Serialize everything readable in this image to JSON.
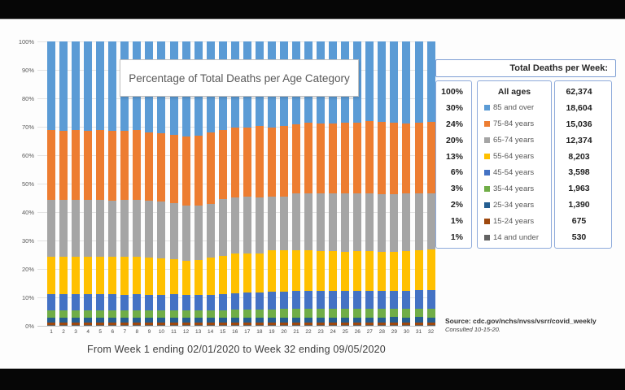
{
  "title_box": {
    "text": "Percentage of Total Deaths per Age Category"
  },
  "legend_panel": {
    "header": "Total Deaths per Week:",
    "rows": [
      {
        "percent": "100%",
        "label": "All ages",
        "swatch": null,
        "value": "62,374"
      },
      {
        "percent": "30%",
        "label": "85 and over",
        "swatch": "#5B9BD5",
        "value": "18,604"
      },
      {
        "percent": "24%",
        "label": "75-84 years",
        "swatch": "#ED7D31",
        "value": "15,036"
      },
      {
        "percent": "20%",
        "label": "65-74 years",
        "swatch": "#A5A5A5",
        "value": "12,374"
      },
      {
        "percent": "13%",
        "label": "55-64 years",
        "swatch": "#FFC000",
        "value": "8,203"
      },
      {
        "percent": "6%",
        "label": "45-54 years",
        "swatch": "#4472C4",
        "value": "3,598"
      },
      {
        "percent": "3%",
        "label": "35-44 years",
        "swatch": "#70AD47",
        "value": "1,963"
      },
      {
        "percent": "2%",
        "label": "25-34 years",
        "swatch": "#255E91",
        "value": "1,390"
      },
      {
        "percent": "1%",
        "label": "15-24 years",
        "swatch": "#9E480E",
        "value": "675"
      },
      {
        "percent": "1%",
        "label": "14 and under",
        "swatch": "#636363",
        "value": "530"
      }
    ]
  },
  "source": {
    "line1": "Source: cdc.gov/nchs/nvss/vsrr/covid_weekly",
    "line2": "Consulted 10-15-20."
  },
  "chart_data": {
    "type": "bar",
    "stacked": true,
    "title": "Percentage of Total Deaths per Age Category",
    "xlabel": "From Week 1 ending 02/01/2020 to Week 32 ending 09/05/2020",
    "ylabel": "",
    "ylim": [
      0,
      100
    ],
    "grid": true,
    "legend_position": "right",
    "y_ticks": [
      "100%",
      "90%",
      "80%",
      "70%",
      "60%",
      "50%",
      "40%",
      "30%",
      "20%",
      "10%",
      "0%"
    ],
    "x": [
      1,
      2,
      3,
      4,
      5,
      6,
      7,
      8,
      9,
      10,
      11,
      12,
      13,
      14,
      15,
      16,
      17,
      18,
      19,
      20,
      21,
      22,
      23,
      24,
      25,
      26,
      27,
      28,
      29,
      30,
      31,
      32
    ],
    "series": [
      {
        "name": "85 and over",
        "color": "#5B9BD5",
        "values": [
          31.2,
          31.4,
          31.1,
          31.5,
          31.2,
          31.5,
          31.3,
          31.1,
          32.0,
          32.4,
          32.8,
          33.4,
          33.0,
          32.1,
          31.1,
          30.2,
          30.3,
          29.7,
          30.2,
          29.8,
          29.2,
          28.7,
          28.9,
          28.9,
          28.6,
          28.5,
          27.9,
          28.2,
          28.6,
          28.8,
          28.6,
          28.3
        ]
      },
      {
        "name": "75-84 years",
        "color": "#ED7D31",
        "values": [
          24.4,
          24.3,
          24.6,
          24.2,
          24.5,
          24.4,
          24.5,
          24.7,
          24.1,
          24.0,
          24.1,
          24.3,
          24.8,
          25.0,
          24.3,
          24.6,
          24.4,
          25.1,
          24.3,
          24.8,
          24.2,
          24.7,
          24.6,
          24.5,
          24.9,
          25.0,
          25.5,
          25.4,
          25.0,
          24.7,
          24.8,
          25.0
        ]
      },
      {
        "name": "65-74 years",
        "color": "#A5A5A5",
        "values": [
          20.0,
          20.0,
          19.9,
          20.1,
          20.1,
          19.8,
          19.9,
          19.9,
          19.9,
          19.8,
          19.6,
          19.3,
          19.0,
          18.9,
          19.9,
          19.8,
          19.9,
          19.7,
          19.0,
          18.9,
          20.0,
          20.1,
          20.2,
          20.2,
          20.4,
          20.3,
          20.3,
          20.4,
          20.3,
          20.1,
          20.0,
          19.9
        ]
      },
      {
        "name": "55-64 years",
        "color": "#FFC000",
        "values": [
          13.3,
          13.2,
          13.3,
          13.1,
          13.1,
          13.2,
          13.3,
          13.2,
          13.0,
          12.8,
          12.5,
          12.1,
          12.3,
          13.0,
          13.5,
          13.9,
          13.8,
          13.9,
          14.5,
          14.4,
          14.2,
          14.3,
          14.0,
          14.1,
          13.8,
          13.9,
          14.0,
          13.7,
          13.8,
          14.0,
          14.1,
          14.2
        ]
      },
      {
        "name": "45-54 years",
        "color": "#4472C4",
        "values": [
          5.6,
          5.6,
          5.6,
          5.6,
          5.6,
          5.6,
          5.5,
          5.6,
          5.5,
          5.5,
          5.5,
          5.4,
          5.4,
          5.5,
          5.7,
          5.9,
          6.0,
          6.0,
          6.2,
          6.2,
          6.4,
          6.2,
          6.3,
          6.3,
          6.3,
          6.3,
          6.3,
          6.3,
          6.3,
          6.4,
          6.5,
          6.6
        ]
      },
      {
        "name": "35-44 years",
        "color": "#70AD47",
        "values": [
          2.7,
          2.7,
          2.7,
          2.7,
          2.7,
          2.7,
          2.7,
          2.7,
          2.7,
          2.7,
          2.7,
          2.7,
          2.7,
          2.7,
          2.7,
          2.8,
          2.8,
          2.8,
          2.9,
          3.0,
          3.0,
          3.0,
          3.0,
          3.0,
          3.0,
          3.0,
          3.0,
          3.0,
          3.0,
          3.0,
          3.0,
          3.0
        ]
      },
      {
        "name": "25-34 years",
        "color": "#255E91",
        "values": [
          1.6,
          1.6,
          1.6,
          1.6,
          1.6,
          1.6,
          1.6,
          1.6,
          1.6,
          1.6,
          1.6,
          1.6,
          1.6,
          1.6,
          1.6,
          1.6,
          1.6,
          1.6,
          1.7,
          1.7,
          1.8,
          1.8,
          1.8,
          1.8,
          1.8,
          1.8,
          1.8,
          1.8,
          1.8,
          1.8,
          1.8,
          1.8
        ]
      },
      {
        "name": "15-24 years",
        "color": "#9E480E",
        "values": [
          0.8,
          0.8,
          0.8,
          0.8,
          0.8,
          0.8,
          0.8,
          0.8,
          0.8,
          0.8,
          0.8,
          0.8,
          0.8,
          0.8,
          0.8,
          0.8,
          0.8,
          0.8,
          0.8,
          0.8,
          0.8,
          0.8,
          0.8,
          0.8,
          0.8,
          0.8,
          0.8,
          0.8,
          0.8,
          0.8,
          0.8,
          0.8
        ]
      },
      {
        "name": "14 and under",
        "color": "#636363",
        "values": [
          0.4,
          0.4,
          0.4,
          0.4,
          0.4,
          0.4,
          0.4,
          0.4,
          0.4,
          0.4,
          0.4,
          0.4,
          0.4,
          0.4,
          0.4,
          0.4,
          0.4,
          0.4,
          0.4,
          0.4,
          0.4,
          0.4,
          0.4,
          0.4,
          0.4,
          0.4,
          0.4,
          0.4,
          0.4,
          0.4,
          0.4,
          0.4
        ]
      }
    ]
  }
}
